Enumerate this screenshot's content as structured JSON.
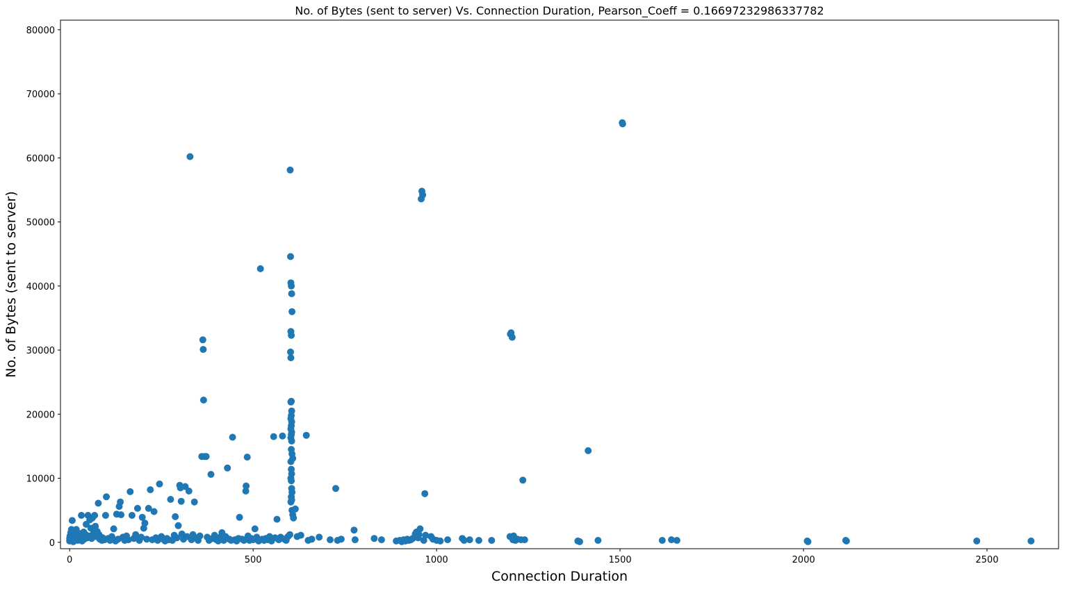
{
  "chart_data": {
    "type": "scatter",
    "title": "No. of Bytes (sent to server) Vs. Connection Duration, Pearson_Coeff = 0.16697232986337782",
    "xlabel": "Connection Duration",
    "ylabel": "No. of Bytes (sent to server)",
    "xlim": [
      -25,
      2695
    ],
    "ylim": [
      -1000,
      81500
    ],
    "xticks": [
      0,
      500,
      1000,
      1500,
      2000,
      2500
    ],
    "yticks": [
      0,
      10000,
      20000,
      30000,
      40000,
      50000,
      60000,
      70000,
      80000
    ],
    "grid": false,
    "marker_color": "#1f77b4",
    "points": [
      [
        0,
        200
      ],
      [
        0,
        600
      ],
      [
        1,
        1000
      ],
      [
        2,
        300
      ],
      [
        3,
        1500
      ],
      [
        4,
        700
      ],
      [
        5,
        2000
      ],
      [
        6,
        400
      ],
      [
        7,
        3400
      ],
      [
        8,
        900
      ],
      [
        10,
        100
      ],
      [
        12,
        1200
      ],
      [
        14,
        500
      ],
      [
        16,
        1800
      ],
      [
        18,
        2000
      ],
      [
        20,
        800
      ],
      [
        22,
        300
      ],
      [
        25,
        1400
      ],
      [
        28,
        600
      ],
      [
        30,
        1100
      ],
      [
        32,
        4200
      ],
      [
        34,
        200
      ],
      [
        36,
        900
      ],
      [
        38,
        1600
      ],
      [
        40,
        500
      ],
      [
        42,
        1300
      ],
      [
        45,
        2800
      ],
      [
        48,
        700
      ],
      [
        50,
        4200
      ],
      [
        52,
        1000
      ],
      [
        55,
        3500
      ],
      [
        58,
        2200
      ],
      [
        60,
        600
      ],
      [
        62,
        3800
      ],
      [
        65,
        1400
      ],
      [
        68,
        4200
      ],
      [
        70,
        2500
      ],
      [
        72,
        900
      ],
      [
        75,
        1700
      ],
      [
        78,
        6100
      ],
      [
        80,
        1200
      ],
      [
        82,
        500
      ],
      [
        85,
        800
      ],
      [
        88,
        300
      ],
      [
        90,
        700
      ],
      [
        95,
        400
      ],
      [
        98,
        4200
      ],
      [
        100,
        7100
      ],
      [
        105,
        600
      ],
      [
        110,
        300
      ],
      [
        115,
        900
      ],
      [
        120,
        2100
      ],
      [
        125,
        200
      ],
      [
        128,
        4400
      ],
      [
        132,
        500
      ],
      [
        135,
        5600
      ],
      [
        138,
        6300
      ],
      [
        140,
        4300
      ],
      [
        145,
        800
      ],
      [
        150,
        300
      ],
      [
        155,
        1000
      ],
      [
        160,
        400
      ],
      [
        165,
        7900
      ],
      [
        170,
        4200
      ],
      [
        175,
        600
      ],
      [
        180,
        1200
      ],
      [
        185,
        5300
      ],
      [
        190,
        300
      ],
      [
        195,
        800
      ],
      [
        198,
        3900
      ],
      [
        202,
        2200
      ],
      [
        205,
        3000
      ],
      [
        210,
        500
      ],
      [
        215,
        5300
      ],
      [
        220,
        8200
      ],
      [
        225,
        400
      ],
      [
        230,
        4800
      ],
      [
        235,
        700
      ],
      [
        240,
        300
      ],
      [
        245,
        9100
      ],
      [
        250,
        900
      ],
      [
        255,
        500
      ],
      [
        260,
        200
      ],
      [
        265,
        600
      ],
      [
        270,
        400
      ],
      [
        275,
        6700
      ],
      [
        280,
        300
      ],
      [
        285,
        1100
      ],
      [
        288,
        4000
      ],
      [
        292,
        700
      ],
      [
        296,
        2600
      ],
      [
        300,
        8900
      ],
      [
        302,
        8500
      ],
      [
        304,
        6400
      ],
      [
        306,
        1300
      ],
      [
        310,
        500
      ],
      [
        315,
        8700
      ],
      [
        320,
        900
      ],
      [
        325,
        8000
      ],
      [
        328,
        60200
      ],
      [
        332,
        400
      ],
      [
        336,
        1200
      ],
      [
        340,
        6300
      ],
      [
        345,
        700
      ],
      [
        350,
        300
      ],
      [
        355,
        1000
      ],
      [
        360,
        13400
      ],
      [
        363,
        31600
      ],
      [
        364,
        30100
      ],
      [
        365,
        22200
      ],
      [
        368,
        13400
      ],
      [
        372,
        13400
      ],
      [
        375,
        800
      ],
      [
        380,
        300
      ],
      [
        385,
        10600
      ],
      [
        390,
        600
      ],
      [
        395,
        1100
      ],
      [
        400,
        400
      ],
      [
        405,
        200
      ],
      [
        410,
        800
      ],
      [
        415,
        1500
      ],
      [
        420,
        300
      ],
      [
        425,
        900
      ],
      [
        430,
        11600
      ],
      [
        435,
        500
      ],
      [
        440,
        300
      ],
      [
        444,
        16400
      ],
      [
        450,
        400
      ],
      [
        455,
        200
      ],
      [
        460,
        600
      ],
      [
        463,
        3900
      ],
      [
        470,
        500
      ],
      [
        475,
        300
      ],
      [
        480,
        8000
      ],
      [
        481,
        8800
      ],
      [
        484,
        13300
      ],
      [
        486,
        1000
      ],
      [
        490,
        300
      ],
      [
        495,
        600
      ],
      [
        500,
        400
      ],
      [
        505,
        2100
      ],
      [
        510,
        800
      ],
      [
        515,
        200
      ],
      [
        520,
        42700
      ],
      [
        525,
        500
      ],
      [
        530,
        300
      ],
      [
        535,
        600
      ],
      [
        540,
        400
      ],
      [
        545,
        900
      ],
      [
        550,
        200
      ],
      [
        556,
        16500
      ],
      [
        560,
        700
      ],
      [
        565,
        3600
      ],
      [
        570,
        400
      ],
      [
        575,
        800
      ],
      [
        580,
        16600
      ],
      [
        585,
        500
      ],
      [
        590,
        300
      ],
      [
        595,
        900
      ],
      [
        600,
        1200
      ],
      [
        601,
        58100
      ],
      [
        602,
        44600
      ],
      [
        603,
        40500
      ],
      [
        604,
        40000
      ],
      [
        605,
        38800
      ],
      [
        603,
        32900
      ],
      [
        604,
        32300
      ],
      [
        602,
        29700
      ],
      [
        603,
        28800
      ],
      [
        606,
        36000
      ],
      [
        604,
        22000
      ],
      [
        603,
        21900
      ],
      [
        605,
        20500
      ],
      [
        604,
        19800
      ],
      [
        603,
        19300
      ],
      [
        605,
        18800
      ],
      [
        604,
        18200
      ],
      [
        603,
        17700
      ],
      [
        605,
        17200
      ],
      [
        604,
        16800
      ],
      [
        603,
        16300
      ],
      [
        605,
        15800
      ],
      [
        604,
        14500
      ],
      [
        606,
        13800
      ],
      [
        608,
        13100
      ],
      [
        603,
        12600
      ],
      [
        604,
        11400
      ],
      [
        605,
        10700
      ],
      [
        603,
        10000
      ],
      [
        604,
        9600
      ],
      [
        605,
        8400
      ],
      [
        606,
        7800
      ],
      [
        604,
        7100
      ],
      [
        605,
        6600
      ],
      [
        603,
        6300
      ],
      [
        606,
        5000
      ],
      [
        608,
        4300
      ],
      [
        610,
        3800
      ],
      [
        615,
        5200
      ],
      [
        620,
        900
      ],
      [
        630,
        1100
      ],
      [
        645,
        16700
      ],
      [
        650,
        300
      ],
      [
        660,
        500
      ],
      [
        680,
        800
      ],
      [
        710,
        400
      ],
      [
        725,
        8400
      ],
      [
        730,
        300
      ],
      [
        740,
        500
      ],
      [
        775,
        1900
      ],
      [
        778,
        400
      ],
      [
        830,
        600
      ],
      [
        850,
        400
      ],
      [
        890,
        200
      ],
      [
        900,
        300
      ],
      [
        905,
        100
      ],
      [
        910,
        400
      ],
      [
        915,
        200
      ],
      [
        920,
        500
      ],
      [
        925,
        300
      ],
      [
        930,
        400
      ],
      [
        935,
        600
      ],
      [
        940,
        800
      ],
      [
        942,
        1300
      ],
      [
        945,
        1600
      ],
      [
        948,
        900
      ],
      [
        950,
        700
      ],
      [
        952,
        1200
      ],
      [
        955,
        2100
      ],
      [
        958,
        53600
      ],
      [
        960,
        54800
      ],
      [
        962,
        54200
      ],
      [
        965,
        300
      ],
      [
        968,
        7600
      ],
      [
        970,
        1100
      ],
      [
        985,
        900
      ],
      [
        990,
        500
      ],
      [
        1000,
        300
      ],
      [
        1010,
        200
      ],
      [
        1030,
        400
      ],
      [
        1070,
        600
      ],
      [
        1075,
        300
      ],
      [
        1090,
        400
      ],
      [
        1115,
        300
      ],
      [
        1150,
        300
      ],
      [
        1200,
        900
      ],
      [
        1201,
        32500
      ],
      [
        1203,
        32700
      ],
      [
        1206,
        32000
      ],
      [
        1208,
        400
      ],
      [
        1210,
        1000
      ],
      [
        1215,
        300
      ],
      [
        1220,
        500
      ],
      [
        1230,
        400
      ],
      [
        1235,
        9700
      ],
      [
        1240,
        400
      ],
      [
        1385,
        200
      ],
      [
        1390,
        100
      ],
      [
        1413,
        14300
      ],
      [
        1440,
        300
      ],
      [
        1506,
        65500
      ],
      [
        1507,
        65300
      ],
      [
        1615,
        300
      ],
      [
        1640,
        400
      ],
      [
        1655,
        300
      ],
      [
        2010,
        200
      ],
      [
        2012,
        100
      ],
      [
        2115,
        300
      ],
      [
        2117,
        200
      ],
      [
        2472,
        200
      ],
      [
        2620,
        200
      ]
    ]
  }
}
